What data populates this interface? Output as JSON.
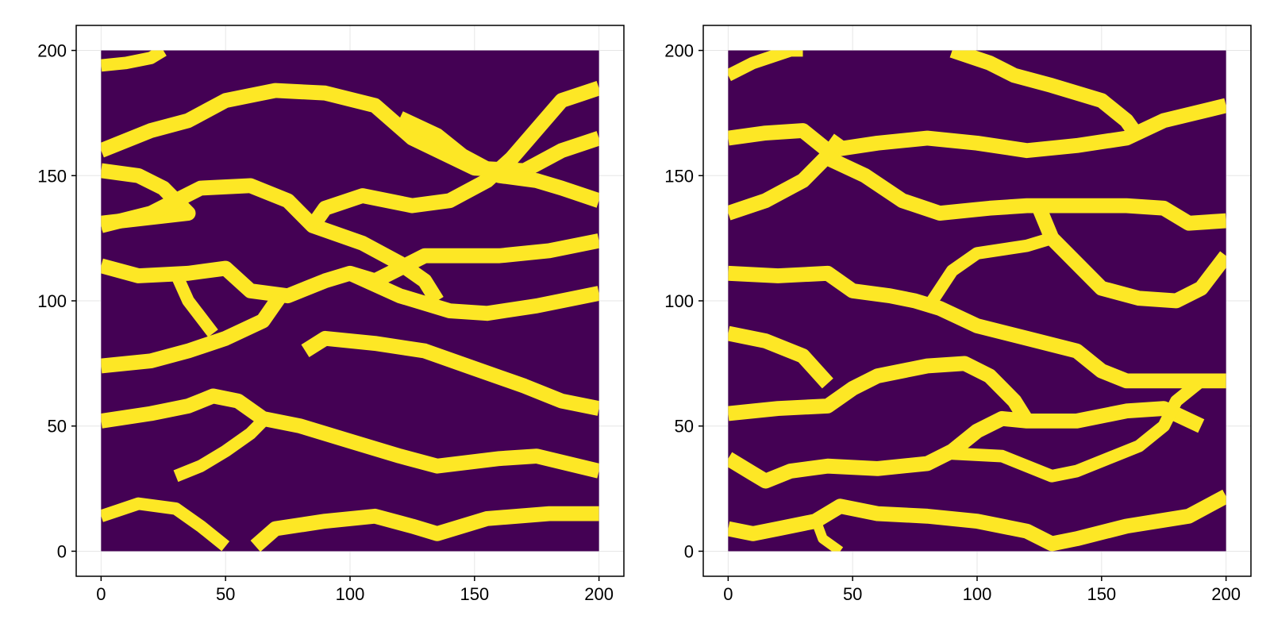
{
  "chart_data": [
    {
      "type": "heatmap",
      "title": "",
      "xlabel": "",
      "ylabel": "",
      "xlim": [
        -10,
        210
      ],
      "ylim": [
        -10,
        210
      ],
      "grid": true,
      "x_ticks": [
        "0",
        "50",
        "100",
        "150",
        "200"
      ],
      "y_ticks": [
        "0",
        "50",
        "100",
        "150",
        "200"
      ],
      "colors": {
        "background": "#440154",
        "channel": "#fde725"
      },
      "values_description": "binary field (0 = purple background, 1 = yellow channel) on a 200x200 grid",
      "channels": [
        {
          "points": [
            [
              0,
              194
            ],
            [
              10,
              195
            ],
            [
              20,
              197
            ],
            [
              25,
              200
            ]
          ],
          "width": 5
        },
        {
          "points": [
            [
              0,
              160
            ],
            [
              20,
              168
            ],
            [
              35,
              172
            ],
            [
              50,
              180
            ],
            [
              70,
              184
            ],
            [
              90,
              183
            ],
            [
              110,
              178
            ],
            [
              125,
              165
            ],
            [
              150,
              153
            ],
            [
              170,
              152
            ],
            [
              185,
              160
            ],
            [
              200,
              165
            ]
          ],
          "width": 6
        },
        {
          "points": [
            [
              0,
              152
            ],
            [
              15,
              150
            ],
            [
              25,
              145
            ],
            [
              35,
              135
            ],
            [
              0,
              131
            ]
          ],
          "width": 6
        },
        {
          "points": [
            [
              0,
              130
            ],
            [
              20,
              135
            ],
            [
              40,
              145
            ],
            [
              60,
              146
            ],
            [
              75,
              140
            ],
            [
              85,
              130
            ],
            [
              105,
              123
            ],
            [
              120,
              115
            ],
            [
              130,
              108
            ],
            [
              135,
              100
            ]
          ],
          "width": 6
        },
        {
          "points": [
            [
              85,
              130
            ],
            [
              90,
              137
            ],
            [
              105,
              142
            ],
            [
              125,
              138
            ],
            [
              140,
              140
            ],
            [
              155,
              148
            ],
            [
              165,
              157
            ],
            [
              185,
              180
            ],
            [
              200,
              185
            ]
          ],
          "width": 6
        },
        {
          "points": [
            [
              120,
              173
            ],
            [
              135,
              166
            ],
            [
              145,
              158
            ],
            [
              160,
              150
            ],
            [
              175,
              148
            ],
            [
              185,
              145
            ],
            [
              200,
              140
            ]
          ],
          "width": 6
        },
        {
          "points": [
            [
              0,
              114
            ],
            [
              15,
              110
            ],
            [
              35,
              111
            ],
            [
              50,
              113
            ],
            [
              60,
              104
            ],
            [
              75,
              102
            ],
            [
              90,
              108
            ],
            [
              100,
              111
            ],
            [
              110,
              108
            ],
            [
              130,
              118
            ],
            [
              160,
              118
            ],
            [
              180,
              120
            ],
            [
              200,
              124
            ]
          ],
          "width": 6
        },
        {
          "points": [
            [
              100,
              111
            ],
            [
              120,
              102
            ],
            [
              140,
              96
            ],
            [
              155,
              95
            ],
            [
              175,
              98
            ],
            [
              200,
              103
            ]
          ],
          "width": 6
        },
        {
          "points": [
            [
              0,
              74
            ],
            [
              20,
              76
            ],
            [
              35,
              80
            ],
            [
              50,
              85
            ],
            [
              65,
              92
            ],
            [
              72,
              102
            ]
          ],
          "width": 6
        },
        {
          "points": [
            [
              30,
              111
            ],
            [
              35,
              100
            ],
            [
              45,
              87
            ]
          ],
          "width": 5
        },
        {
          "points": [
            [
              82,
              80
            ],
            [
              90,
              85
            ],
            [
              110,
              83
            ],
            [
              130,
              80
            ],
            [
              150,
              73
            ],
            [
              170,
              66
            ],
            [
              185,
              60
            ],
            [
              200,
              57
            ]
          ],
          "width": 6
        },
        {
          "points": [
            [
              0,
              52
            ],
            [
              20,
              55
            ],
            [
              35,
              58
            ],
            [
              45,
              62
            ],
            [
              55,
              60
            ],
            [
              65,
              53
            ],
            [
              80,
              50
            ],
            [
              100,
              44
            ],
            [
              120,
              38
            ],
            [
              135,
              34
            ],
            [
              160,
              37
            ],
            [
              175,
              38
            ],
            [
              200,
              32
            ]
          ],
          "width": 6
        },
        {
          "points": [
            [
              30,
              30
            ],
            [
              40,
              34
            ],
            [
              50,
              40
            ],
            [
              60,
              47
            ],
            [
              65,
              52
            ]
          ],
          "width": 5
        },
        {
          "points": [
            [
              0,
              14
            ],
            [
              15,
              19
            ],
            [
              30,
              17
            ],
            [
              40,
              10
            ],
            [
              50,
              2
            ]
          ],
          "width": 5
        },
        {
          "points": [
            [
              62,
              2
            ],
            [
              70,
              9
            ],
            [
              90,
              12
            ],
            [
              110,
              14
            ],
            [
              125,
              10
            ],
            [
              135,
              7
            ],
            [
              155,
              13
            ],
            [
              180,
              15
            ],
            [
              200,
              15
            ]
          ],
          "width": 6
        }
      ]
    },
    {
      "type": "heatmap",
      "title": "",
      "xlabel": "",
      "ylabel": "",
      "xlim": [
        -10,
        210
      ],
      "ylim": [
        -10,
        210
      ],
      "grid": true,
      "x_ticks": [
        "0",
        "50",
        "100",
        "150",
        "200"
      ],
      "y_ticks": [
        "0",
        "50",
        "100",
        "150",
        "200"
      ],
      "colors": {
        "background": "#440154",
        "channel": "#fde725"
      },
      "values_description": "binary field (0 = purple background, 1 = yellow channel) on a 200x200 grid",
      "channels": [
        {
          "points": [
            [
              0,
              190
            ],
            [
              10,
              195
            ],
            [
              25,
              200
            ],
            [
              30,
              200
            ]
          ],
          "width": 5
        },
        {
          "points": [
            [
              90,
              200
            ],
            [
              105,
              195
            ],
            [
              115,
              190
            ],
            [
              130,
              186
            ],
            [
              150,
              180
            ],
            [
              160,
              172
            ],
            [
              165,
              165
            ]
          ],
          "width": 6
        },
        {
          "points": [
            [
              0,
              165
            ],
            [
              15,
              167
            ],
            [
              30,
              168
            ],
            [
              40,
              160
            ],
            [
              60,
              163
            ],
            [
              80,
              165
            ],
            [
              100,
              163
            ],
            [
              120,
              160
            ],
            [
              140,
              162
            ],
            [
              160,
              165
            ],
            [
              175,
              172
            ],
            [
              200,
              178
            ]
          ],
          "width": 6
        },
        {
          "points": [
            [
              0,
              135
            ],
            [
              15,
              140
            ],
            [
              30,
              148
            ],
            [
              40,
              158
            ],
            [
              45,
              165
            ]
          ],
          "width": 6
        },
        {
          "points": [
            [
              40,
              157
            ],
            [
              55,
              150
            ],
            [
              70,
              140
            ],
            [
              85,
              135
            ],
            [
              105,
              137
            ],
            [
              120,
              138
            ],
            [
              140,
              138
            ],
            [
              160,
              138
            ],
            [
              175,
              137
            ],
            [
              185,
              131
            ],
            [
              200,
              132
            ]
          ],
          "width": 6
        },
        {
          "points": [
            [
              125,
              137
            ],
            [
              130,
              125
            ],
            [
              140,
              115
            ],
            [
              150,
              105
            ],
            [
              165,
              101
            ],
            [
              180,
              100
            ],
            [
              190,
              105
            ],
            [
              200,
              118
            ]
          ],
          "width": 6
        },
        {
          "points": [
            [
              0,
              111
            ],
            [
              20,
              110
            ],
            [
              40,
              111
            ],
            [
              50,
              104
            ],
            [
              65,
              102
            ],
            [
              75,
              100
            ],
            [
              85,
              97
            ],
            [
              100,
              90
            ],
            [
              120,
              85
            ],
            [
              140,
              80
            ],
            [
              150,
              72
            ],
            [
              160,
              68
            ],
            [
              175,
              68
            ],
            [
              200,
              68
            ]
          ],
          "width": 6
        },
        {
          "points": [
            [
              80,
              97
            ],
            [
              90,
              112
            ],
            [
              100,
              119
            ],
            [
              120,
              122
            ],
            [
              130,
              125
            ]
          ],
          "width": 5
        },
        {
          "points": [
            [
              0,
              87
            ],
            [
              15,
              84
            ],
            [
              30,
              78
            ],
            [
              40,
              67
            ]
          ],
          "width": 6
        },
        {
          "points": [
            [
              0,
              55
            ],
            [
              20,
              57
            ],
            [
              40,
              58
            ],
            [
              50,
              65
            ],
            [
              60,
              70
            ],
            [
              80,
              74
            ],
            [
              95,
              75
            ],
            [
              105,
              70
            ],
            [
              115,
              60
            ],
            [
              120,
              52
            ]
          ],
          "width": 6
        },
        {
          "points": [
            [
              0,
              37
            ],
            [
              10,
              31
            ],
            [
              15,
              28
            ],
            [
              25,
              32
            ],
            [
              40,
              34
            ],
            [
              60,
              33
            ],
            [
              80,
              35
            ],
            [
              90,
              40
            ],
            [
              100,
              48
            ],
            [
              110,
              53
            ],
            [
              120,
              52
            ],
            [
              140,
              52
            ],
            [
              160,
              56
            ],
            [
              175,
              57
            ],
            [
              190,
              50
            ]
          ],
          "width": 6
        },
        {
          "points": [
            [
              90,
              39
            ],
            [
              110,
              38
            ],
            [
              130,
              30
            ],
            [
              140,
              32
            ],
            [
              155,
              38
            ],
            [
              165,
              42
            ],
            [
              175,
              50
            ],
            [
              180,
              60
            ],
            [
              190,
              68
            ]
          ],
          "width": 5
        },
        {
          "points": [
            [
              0,
              9
            ],
            [
              10,
              7
            ],
            [
              20,
              9
            ],
            [
              35,
              12
            ],
            [
              45,
              18
            ],
            [
              60,
              15
            ],
            [
              80,
              14
            ],
            [
              100,
              12
            ],
            [
              120,
              8
            ],
            [
              130,
              3
            ],
            [
              140,
              5
            ],
            [
              160,
              10
            ],
            [
              185,
              14
            ],
            [
              200,
              22
            ]
          ],
          "width": 6
        },
        {
          "points": [
            [
              35,
              13
            ],
            [
              38,
              5
            ],
            [
              45,
              0
            ]
          ],
          "width": 4
        }
      ]
    }
  ]
}
